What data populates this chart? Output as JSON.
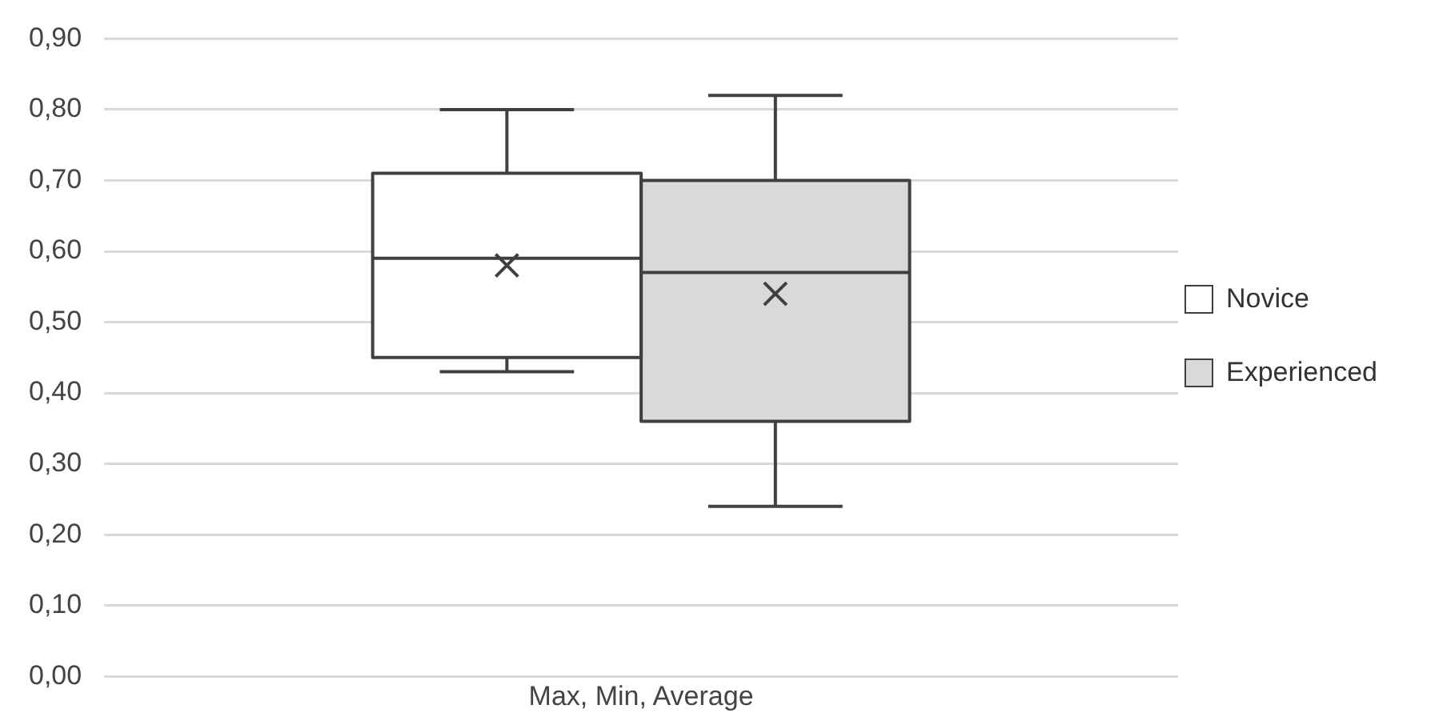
{
  "chart_data": {
    "type": "box",
    "categories": [
      "Max, Min, Average"
    ],
    "series": [
      {
        "name": "Novice",
        "color": "#ffffff",
        "boxes": [
          {
            "low": 0.43,
            "q1": 0.45,
            "median": 0.59,
            "q3": 0.71,
            "high": 0.8,
            "mean": 0.58
          }
        ]
      },
      {
        "name": "Experienced",
        "color": "#d9d9d9",
        "boxes": [
          {
            "low": 0.24,
            "q1": 0.36,
            "median": 0.57,
            "q3": 0.7,
            "high": 0.82,
            "mean": 0.54
          }
        ]
      }
    ],
    "ylim": [
      0,
      0.9
    ],
    "yticks": [
      {
        "value": 0,
        "label": "0,00"
      },
      {
        "value": 0.1,
        "label": "0,10"
      },
      {
        "value": 0.2,
        "label": "0,20"
      },
      {
        "value": 0.3,
        "label": "0,30"
      },
      {
        "value": 0.4,
        "label": "0,40"
      },
      {
        "value": 0.5,
        "label": "0,50"
      },
      {
        "value": 0.6,
        "label": "0,60"
      },
      {
        "value": 0.7,
        "label": "0,70"
      },
      {
        "value": 0.8,
        "label": "0,80"
      },
      {
        "value": 0.9,
        "label": "0,90"
      }
    ],
    "grid": "y",
    "legend": "right",
    "marker": "cross"
  }
}
